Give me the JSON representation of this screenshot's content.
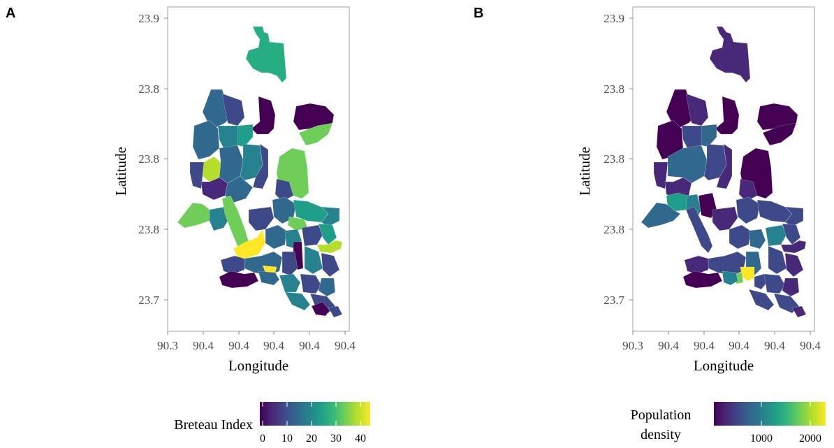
{
  "panels": [
    {
      "letter": "A",
      "xlabel": "Longitude",
      "ylabel": "Latitude",
      "xticks": [
        "90.3",
        "90.4",
        "90.4",
        "90.4",
        "90.4",
        "90.4"
      ],
      "yticks": [
        "23.9",
        "23.8",
        "23.8",
        "23.8",
        "23.7"
      ],
      "legend": {
        "title": "Breteau Index",
        "ticks": [
          "0",
          "10",
          "20",
          "30",
          "40"
        ],
        "min": 0,
        "max": 45
      },
      "colorscale": "viridis"
    },
    {
      "letter": "B",
      "xlabel": "Longitude",
      "ylabel": "Latitude",
      "xticks": [
        "90.3",
        "90.4",
        "90.4",
        "90.4",
        "90.4",
        "90.4"
      ],
      "yticks": [
        "23.9",
        "23.8",
        "23.8",
        "23.8",
        "23.7"
      ],
      "legend": {
        "title_line1": "Population",
        "title_line2": "density",
        "ticks": [
          "1000",
          "2000"
        ],
        "min": 0,
        "max": 2300
      },
      "colorscale": "viridis"
    }
  ],
  "colors": {
    "viridis_stops": [
      "#440154",
      "#482878",
      "#3e4989",
      "#31688e",
      "#26828e",
      "#1f9e89",
      "#35b779",
      "#6ece58",
      "#b5de2b",
      "#fde725"
    ]
  }
}
